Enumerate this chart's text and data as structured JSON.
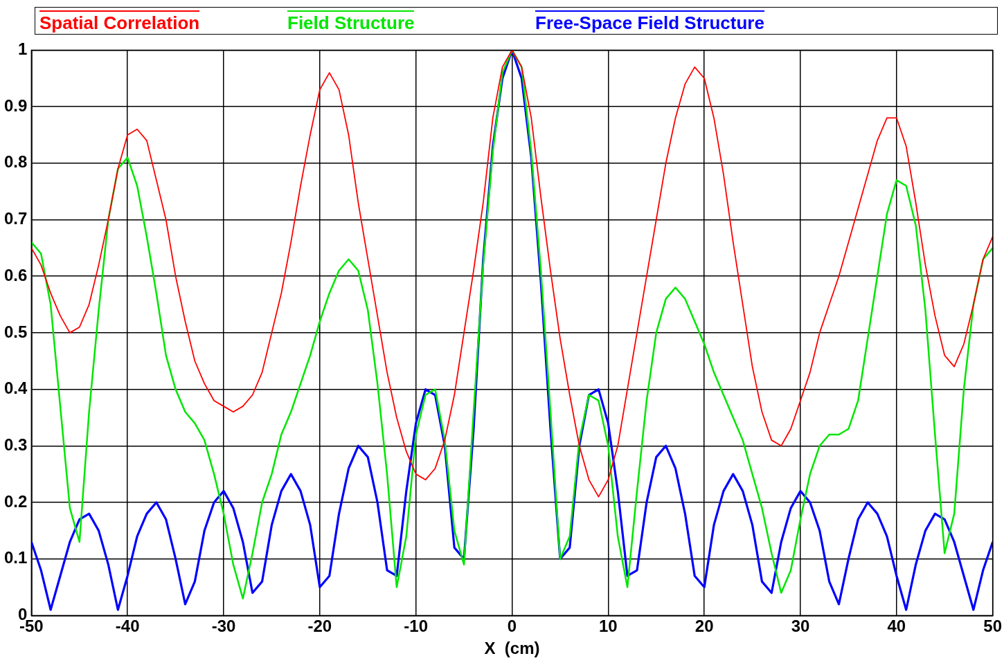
{
  "chart_data": {
    "type": "line",
    "xlabel": "X  (cm)",
    "x": [
      -50,
      -49,
      -48,
      -47,
      -46,
      -45,
      -44,
      -43,
      -42,
      -41,
      -40,
      -39,
      -38,
      -37,
      -36,
      -35,
      -34,
      -33,
      -32,
      -31,
      -30,
      -29,
      -28,
      -27,
      -26,
      -25,
      -24,
      -23,
      -22,
      -21,
      -20,
      -19,
      -18,
      -17,
      -16,
      -15,
      -14,
      -13,
      -12,
      -11,
      -10,
      -9,
      -8,
      -7,
      -6,
      -5,
      -4,
      -3,
      -2,
      -1,
      0,
      1,
      2,
      3,
      4,
      5,
      6,
      7,
      8,
      9,
      10,
      11,
      12,
      13,
      14,
      15,
      16,
      17,
      18,
      19,
      20,
      21,
      22,
      23,
      24,
      25,
      26,
      27,
      28,
      29,
      30,
      31,
      32,
      33,
      34,
      35,
      36,
      37,
      38,
      39,
      40,
      41,
      42,
      43,
      44,
      45,
      46,
      47,
      48,
      49,
      50
    ],
    "series": [
      {
        "name": "Spatial Correlation",
        "color": "#ff0000",
        "values": [
          0.65,
          0.62,
          0.57,
          0.53,
          0.5,
          0.51,
          0.55,
          0.62,
          0.7,
          0.79,
          0.85,
          0.86,
          0.84,
          0.77,
          0.7,
          0.6,
          0.52,
          0.45,
          0.41,
          0.38,
          0.37,
          0.36,
          0.37,
          0.39,
          0.43,
          0.5,
          0.57,
          0.66,
          0.76,
          0.85,
          0.93,
          0.96,
          0.93,
          0.85,
          0.73,
          0.63,
          0.53,
          0.43,
          0.35,
          0.29,
          0.25,
          0.24,
          0.26,
          0.31,
          0.39,
          0.5,
          0.61,
          0.73,
          0.88,
          0.97,
          1.0,
          0.97,
          0.88,
          0.74,
          0.61,
          0.49,
          0.39,
          0.3,
          0.24,
          0.21,
          0.24,
          0.3,
          0.4,
          0.5,
          0.6,
          0.7,
          0.8,
          0.88,
          0.94,
          0.97,
          0.95,
          0.88,
          0.78,
          0.66,
          0.55,
          0.44,
          0.36,
          0.31,
          0.3,
          0.33,
          0.38,
          0.43,
          0.5,
          0.55,
          0.6,
          0.66,
          0.72,
          0.78,
          0.84,
          0.88,
          0.88,
          0.83,
          0.73,
          0.62,
          0.53,
          0.46,
          0.44,
          0.48,
          0.55,
          0.63,
          0.67
        ]
      },
      {
        "name": "Field Structure",
        "color": "#00e600",
        "values": [
          0.66,
          0.64,
          0.55,
          0.37,
          0.19,
          0.13,
          0.36,
          0.54,
          0.7,
          0.79,
          0.81,
          0.76,
          0.67,
          0.57,
          0.46,
          0.4,
          0.36,
          0.34,
          0.31,
          0.25,
          0.18,
          0.09,
          0.03,
          0.11,
          0.2,
          0.25,
          0.32,
          0.36,
          0.41,
          0.46,
          0.52,
          0.57,
          0.61,
          0.63,
          0.61,
          0.54,
          0.41,
          0.25,
          0.05,
          0.14,
          0.32,
          0.39,
          0.4,
          0.31,
          0.15,
          0.09,
          0.36,
          0.62,
          0.82,
          0.96,
          1.0,
          0.97,
          0.82,
          0.61,
          0.36,
          0.1,
          0.14,
          0.31,
          0.39,
          0.38,
          0.3,
          0.14,
          0.05,
          0.22,
          0.38,
          0.5,
          0.56,
          0.58,
          0.56,
          0.52,
          0.48,
          0.43,
          0.39,
          0.35,
          0.31,
          0.25,
          0.19,
          0.11,
          0.04,
          0.08,
          0.17,
          0.25,
          0.3,
          0.32,
          0.32,
          0.33,
          0.38,
          0.49,
          0.6,
          0.71,
          0.77,
          0.76,
          0.69,
          0.54,
          0.32,
          0.11,
          0.18,
          0.4,
          0.55,
          0.63,
          0.65
        ]
      },
      {
        "name": "Free-Space Field Structure",
        "color": "#0000ff",
        "values": [
          0.13,
          0.08,
          0.01,
          0.07,
          0.13,
          0.17,
          0.18,
          0.15,
          0.09,
          0.01,
          0.07,
          0.14,
          0.18,
          0.2,
          0.17,
          0.1,
          0.02,
          0.06,
          0.15,
          0.2,
          0.22,
          0.19,
          0.13,
          0.04,
          0.06,
          0.16,
          0.22,
          0.25,
          0.22,
          0.16,
          0.05,
          0.07,
          0.18,
          0.26,
          0.3,
          0.28,
          0.2,
          0.08,
          0.07,
          0.22,
          0.34,
          0.4,
          0.39,
          0.3,
          0.12,
          0.1,
          0.33,
          0.63,
          0.83,
          0.95,
          1.0,
          0.95,
          0.81,
          0.59,
          0.33,
          0.1,
          0.12,
          0.3,
          0.39,
          0.4,
          0.34,
          0.22,
          0.07,
          0.08,
          0.2,
          0.28,
          0.3,
          0.26,
          0.18,
          0.07,
          0.05,
          0.16,
          0.22,
          0.25,
          0.22,
          0.16,
          0.06,
          0.04,
          0.13,
          0.19,
          0.22,
          0.2,
          0.15,
          0.06,
          0.02,
          0.1,
          0.17,
          0.2,
          0.18,
          0.14,
          0.07,
          0.01,
          0.09,
          0.15,
          0.18,
          0.17,
          0.13,
          0.07,
          0.01,
          0.08,
          0.13
        ]
      }
    ],
    "xlim": [
      -50,
      50
    ],
    "xticks": [
      -50,
      -40,
      -30,
      -20,
      -10,
      0,
      10,
      20,
      30,
      40,
      50
    ],
    "ylim": [
      0,
      1
    ],
    "yticks": [
      0,
      0.1,
      0.2,
      0.3,
      0.4,
      0.5,
      0.6,
      0.7,
      0.8,
      0.9,
      1
    ],
    "grid": true,
    "legend": "top",
    "marker": "none",
    "line_style": "solid"
  }
}
